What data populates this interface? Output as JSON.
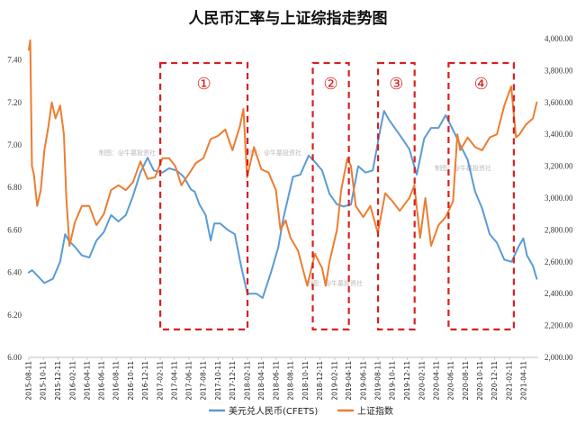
{
  "chart_data": {
    "type": "line",
    "title": "人民币汇率与上证综指走势图",
    "watermark": "制图：@牛墓投资社",
    "left_axis": {
      "min": 6.0,
      "max": 7.5,
      "ticks": [
        "6.00",
        "6.20",
        "6.40",
        "6.60",
        "6.80",
        "7.00",
        "7.20",
        "7.40"
      ],
      "tick_values": [
        6.0,
        6.2,
        6.4,
        6.6,
        6.8,
        7.0,
        7.2,
        7.4
      ]
    },
    "right_axis": {
      "min": 2000,
      "max": 4000,
      "ticks": [
        "2,000.00",
        "2,200.00",
        "2,400.00",
        "2,600.00",
        "2,800.00",
        "3,000.00",
        "3,200.00",
        "3,400.00",
        "3,600.00",
        "3,800.00",
        "4,000.00"
      ],
      "tick_values": [
        2000,
        2200,
        2400,
        2600,
        2800,
        3000,
        3200,
        3400,
        3600,
        3800,
        4000
      ]
    },
    "x_range": [
      "2015-08-11",
      "2021-06-11"
    ],
    "x_ticks": [
      "2015-08-11",
      "2015-10-11",
      "2015-12-11",
      "2016-02-11",
      "2016-04-11",
      "2016-06-11",
      "2016-08-11",
      "2016-10-11",
      "2016-12-11",
      "2017-02-11",
      "2017-04-11",
      "2017-06-11",
      "2017-08-11",
      "2017-10-11",
      "2017-12-11",
      "2018-02-11",
      "2018-04-11",
      "2018-06-11",
      "2018-08-11",
      "2018-10-11",
      "2018-12-11",
      "2019-02-11",
      "2019-04-11",
      "2019-06-11",
      "2019-08-11",
      "2019-10-11",
      "2019-12-11",
      "2020-02-11",
      "2020-04-11",
      "2020-06-11",
      "2020-08-11",
      "2020-10-11",
      "2020-12-11",
      "2021-02-11",
      "2021-04-11"
    ],
    "series": [
      {
        "name": "美元兑人民币(CFETS)",
        "axis": "left",
        "color": "#5b9bd5",
        "points": [
          [
            "2015-08-11",
            6.4
          ],
          [
            "2015-08-25",
            6.41
          ],
          [
            "2015-09-20",
            6.38
          ],
          [
            "2015-10-15",
            6.35
          ],
          [
            "2015-11-20",
            6.37
          ],
          [
            "2015-12-20",
            6.45
          ],
          [
            "2016-01-10",
            6.58
          ],
          [
            "2016-01-25",
            6.55
          ],
          [
            "2016-02-20",
            6.52
          ],
          [
            "2016-03-20",
            6.48
          ],
          [
            "2016-04-20",
            6.47
          ],
          [
            "2016-05-20",
            6.55
          ],
          [
            "2016-06-20",
            6.59
          ],
          [
            "2016-07-20",
            6.67
          ],
          [
            "2016-08-20",
            6.64
          ],
          [
            "2016-09-20",
            6.67
          ],
          [
            "2016-10-20",
            6.76
          ],
          [
            "2016-11-20",
            6.87
          ],
          [
            "2016-12-20",
            6.94
          ],
          [
            "2017-01-15",
            6.88
          ],
          [
            "2017-02-20",
            6.87
          ],
          [
            "2017-03-20",
            6.89
          ],
          [
            "2017-04-20",
            6.88
          ],
          [
            "2017-05-20",
            6.85
          ],
          [
            "2017-06-20",
            6.79
          ],
          [
            "2017-07-05",
            6.78
          ],
          [
            "2017-07-25",
            6.72
          ],
          [
            "2017-08-20",
            6.67
          ],
          [
            "2017-09-10",
            6.55
          ],
          [
            "2017-09-25",
            6.63
          ],
          [
            "2017-10-20",
            6.63
          ],
          [
            "2017-11-20",
            6.6
          ],
          [
            "2017-12-20",
            6.58
          ],
          [
            "2018-01-15",
            6.43
          ],
          [
            "2018-02-10",
            6.3
          ],
          [
            "2018-03-20",
            6.3
          ],
          [
            "2018-04-15",
            6.28
          ],
          [
            "2018-05-20",
            6.4
          ],
          [
            "2018-06-20",
            6.52
          ],
          [
            "2018-07-10",
            6.65
          ],
          [
            "2018-08-20",
            6.85
          ],
          [
            "2018-09-20",
            6.86
          ],
          [
            "2018-10-25",
            6.95
          ],
          [
            "2018-11-20",
            6.92
          ],
          [
            "2018-12-20",
            6.88
          ],
          [
            "2019-01-20",
            6.77
          ],
          [
            "2019-02-20",
            6.72
          ],
          [
            "2019-03-20",
            6.71
          ],
          [
            "2019-04-20",
            6.72
          ],
          [
            "2019-05-20",
            6.9
          ],
          [
            "2019-06-20",
            6.87
          ],
          [
            "2019-07-20",
            6.88
          ],
          [
            "2019-08-20",
            7.07
          ],
          [
            "2019-09-05",
            7.16
          ],
          [
            "2019-09-25",
            7.12
          ],
          [
            "2019-10-20",
            7.08
          ],
          [
            "2019-11-20",
            7.03
          ],
          [
            "2019-12-20",
            6.98
          ],
          [
            "2020-01-20",
            6.86
          ],
          [
            "2020-02-20",
            7.03
          ],
          [
            "2020-03-20",
            7.08
          ],
          [
            "2020-04-20",
            7.08
          ],
          [
            "2020-05-20",
            7.14
          ],
          [
            "2020-06-20",
            7.07
          ],
          [
            "2020-07-20",
            7.0
          ],
          [
            "2020-08-20",
            6.93
          ],
          [
            "2020-09-20",
            6.78
          ],
          [
            "2020-10-20",
            6.7
          ],
          [
            "2020-11-20",
            6.58
          ],
          [
            "2020-12-20",
            6.54
          ],
          [
            "2021-01-20",
            6.46
          ],
          [
            "2021-02-20",
            6.45
          ],
          [
            "2021-03-20",
            6.52
          ],
          [
            "2021-04-10",
            6.56
          ],
          [
            "2021-04-25",
            6.48
          ],
          [
            "2021-05-20",
            6.43
          ],
          [
            "2021-06-05",
            6.37
          ]
        ]
      },
      {
        "name": "上证指数",
        "axis": "right",
        "color": "#ed7d31",
        "points": [
          [
            "2015-08-11",
            3930
          ],
          [
            "2015-08-17",
            3990
          ],
          [
            "2015-08-24",
            3200
          ],
          [
            "2015-09-01",
            3150
          ],
          [
            "2015-09-15",
            2950
          ],
          [
            "2015-09-30",
            3050
          ],
          [
            "2015-10-15",
            3300
          ],
          [
            "2015-11-01",
            3450
          ],
          [
            "2015-11-15",
            3600
          ],
          [
            "2015-12-01",
            3500
          ],
          [
            "2015-12-20",
            3580
          ],
          [
            "2016-01-05",
            3400
          ],
          [
            "2016-01-15",
            3000
          ],
          [
            "2016-01-28",
            2700
          ],
          [
            "2016-02-20",
            2850
          ],
          [
            "2016-03-20",
            2950
          ],
          [
            "2016-04-20",
            2950
          ],
          [
            "2016-05-20",
            2830
          ],
          [
            "2016-06-20",
            2900
          ],
          [
            "2016-07-20",
            3050
          ],
          [
            "2016-08-20",
            3080
          ],
          [
            "2016-09-20",
            3050
          ],
          [
            "2016-10-20",
            3100
          ],
          [
            "2016-11-20",
            3230
          ],
          [
            "2016-12-20",
            3120
          ],
          [
            "2017-01-20",
            3130
          ],
          [
            "2017-02-20",
            3250
          ],
          [
            "2017-03-20",
            3250
          ],
          [
            "2017-04-15",
            3200
          ],
          [
            "2017-05-10",
            3080
          ],
          [
            "2017-06-10",
            3150
          ],
          [
            "2017-07-10",
            3220
          ],
          [
            "2017-08-10",
            3250
          ],
          [
            "2017-09-10",
            3370
          ],
          [
            "2017-10-10",
            3390
          ],
          [
            "2017-11-10",
            3430
          ],
          [
            "2017-12-10",
            3300
          ],
          [
            "2018-01-10",
            3450
          ],
          [
            "2018-01-25",
            3560
          ],
          [
            "2018-02-09",
            3130
          ],
          [
            "2018-03-10",
            3320
          ],
          [
            "2018-04-10",
            3180
          ],
          [
            "2018-05-10",
            3160
          ],
          [
            "2018-06-10",
            3050
          ],
          [
            "2018-06-29",
            2800
          ],
          [
            "2018-07-20",
            2860
          ],
          [
            "2018-08-10",
            2750
          ],
          [
            "2018-09-10",
            2670
          ],
          [
            "2018-10-19",
            2450
          ],
          [
            "2018-11-20",
            2650
          ],
          [
            "2018-12-20",
            2560
          ],
          [
            "2019-01-04",
            2450
          ],
          [
            "2019-01-20",
            2600
          ],
          [
            "2019-02-20",
            2800
          ],
          [
            "2019-03-10",
            3050
          ],
          [
            "2019-04-05",
            3250
          ],
          [
            "2019-04-20",
            3200
          ],
          [
            "2019-05-10",
            2950
          ],
          [
            "2019-06-10",
            2880
          ],
          [
            "2019-07-10",
            2950
          ],
          [
            "2019-08-10",
            2780
          ],
          [
            "2019-09-10",
            3030
          ],
          [
            "2019-10-10",
            2980
          ],
          [
            "2019-11-10",
            2920
          ],
          [
            "2019-12-20",
            3000
          ],
          [
            "2020-01-10",
            3080
          ],
          [
            "2020-02-03",
            2750
          ],
          [
            "2020-02-25",
            3000
          ],
          [
            "2020-03-20",
            2700
          ],
          [
            "2020-04-20",
            2830
          ],
          [
            "2020-05-20",
            2880
          ],
          [
            "2020-06-20",
            2980
          ],
          [
            "2020-07-08",
            3400
          ],
          [
            "2020-07-20",
            3300
          ],
          [
            "2020-08-20",
            3380
          ],
          [
            "2020-09-20",
            3320
          ],
          [
            "2020-10-20",
            3300
          ],
          [
            "2020-11-20",
            3380
          ],
          [
            "2020-12-20",
            3400
          ],
          [
            "2021-01-20",
            3580
          ],
          [
            "2021-02-18",
            3700
          ],
          [
            "2021-03-10",
            3380
          ],
          [
            "2021-03-25",
            3400
          ],
          [
            "2021-04-20",
            3460
          ],
          [
            "2021-05-20",
            3500
          ],
          [
            "2021-06-05",
            3600
          ]
        ]
      }
    ],
    "highlight_periods": [
      {
        "label": "①",
        "start": "2017-02-11",
        "end": "2018-02-11"
      },
      {
        "label": "②",
        "start": "2018-11-11",
        "end": "2019-04-11"
      },
      {
        "label": "③",
        "start": "2019-08-11",
        "end": "2020-01-11"
      },
      {
        "label": "④",
        "start": "2020-06-01",
        "end": "2021-03-01"
      }
    ],
    "legend": [
      "美元兑人民币(CFETS)",
      "上证指数"
    ],
    "legend_position": "bottom-center",
    "grid": false
  }
}
